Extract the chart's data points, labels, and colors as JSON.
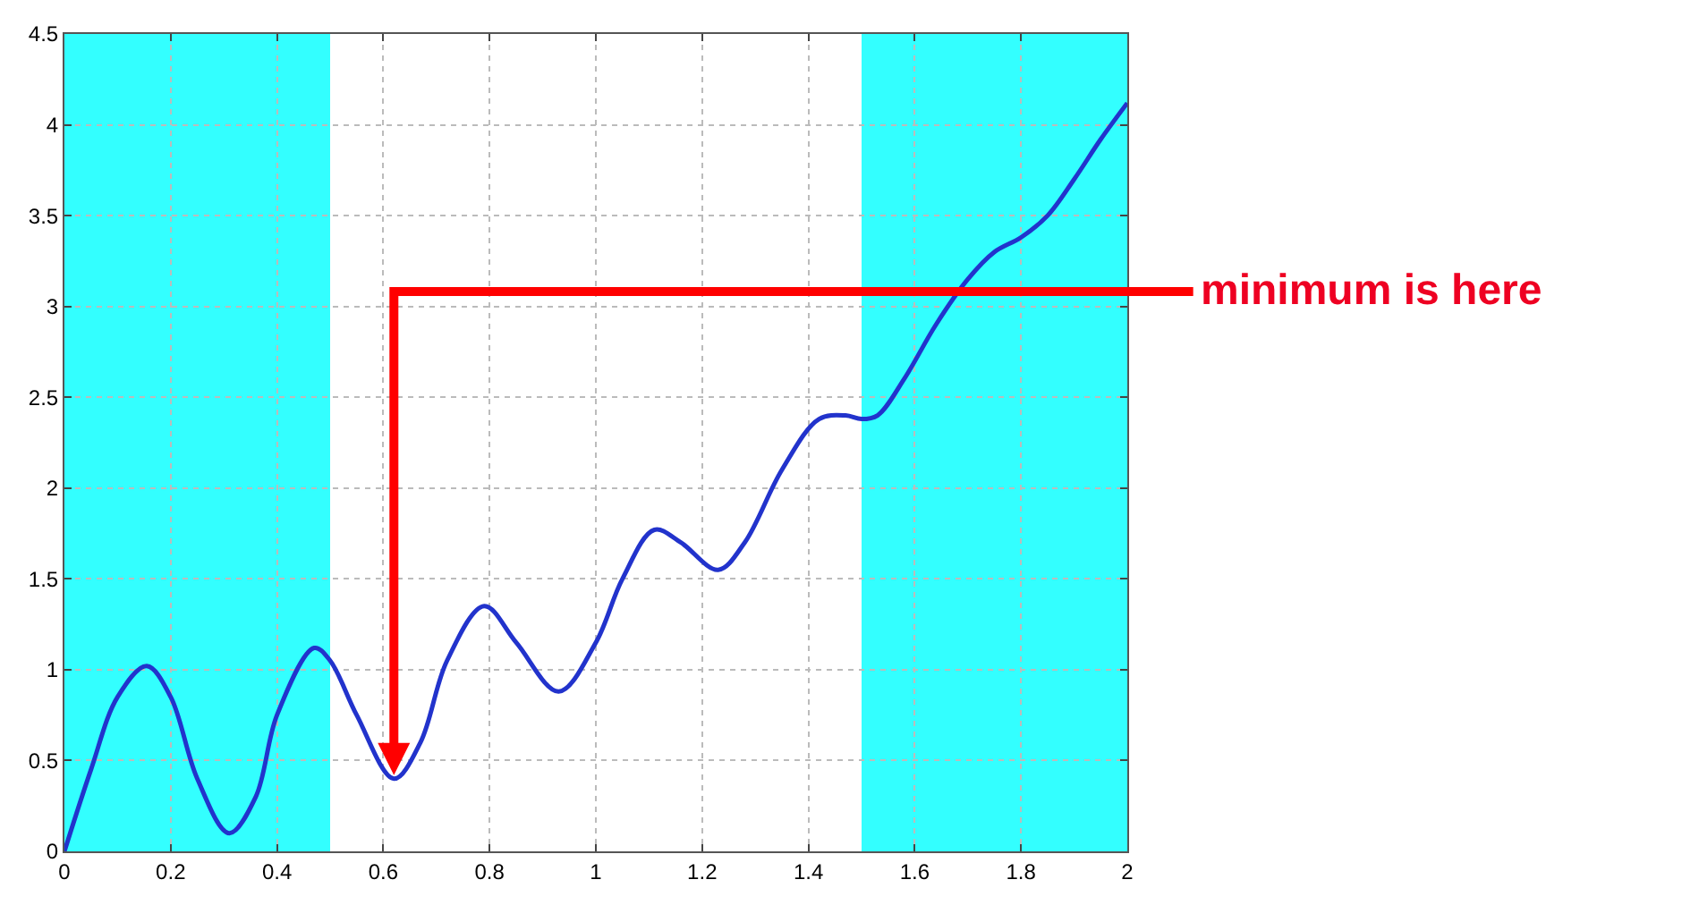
{
  "chart_data": {
    "type": "line",
    "x": [
      0,
      0.05,
      0.1,
      0.155,
      0.2,
      0.25,
      0.31,
      0.36,
      0.4,
      0.47,
      0.5,
      0.55,
      0.62,
      0.67,
      0.72,
      0.79,
      0.85,
      0.93,
      1.0,
      1.05,
      1.11,
      1.16,
      1.23,
      1.28,
      1.35,
      1.42,
      1.47,
      1.5,
      1.53,
      1.58,
      1.64,
      1.7,
      1.75,
      1.8,
      1.85,
      1.9,
      1.95,
      2.0
    ],
    "series": [
      {
        "color": "#2233cc",
        "values": [
          0,
          0.45,
          0.85,
          1.02,
          0.85,
          0.4,
          0.1,
          0.3,
          0.75,
          1.12,
          1.05,
          0.75,
          0.4,
          0.6,
          1.05,
          1.35,
          1.15,
          0.88,
          1.15,
          1.5,
          1.77,
          1.7,
          1.55,
          1.7,
          2.1,
          2.38,
          2.4,
          2.38,
          2.4,
          2.6,
          2.9,
          3.15,
          3.3,
          3.38,
          3.5,
          3.7,
          3.92,
          4.12
        ]
      }
    ],
    "xlim": [
      0,
      2
    ],
    "xticks": [
      0,
      0.2,
      0.4,
      0.6,
      0.8,
      1,
      1.2,
      1.4,
      1.6,
      1.8,
      2
    ],
    "ylim": [
      0,
      4.5
    ],
    "yticks": [
      0,
      0.5,
      1,
      1.5,
      2,
      2.5,
      3,
      3.5,
      4,
      4.5
    ],
    "grid": true,
    "marker": "none",
    "line_style": "solid",
    "bands": [
      {
        "axis": "x",
        "from": 0,
        "to": 0.5,
        "color": "#33ffff"
      },
      {
        "axis": "x",
        "from": 1.5,
        "to": 2,
        "color": "#33ffff"
      }
    ],
    "annotations": [
      "minimum is here"
    ]
  }
}
